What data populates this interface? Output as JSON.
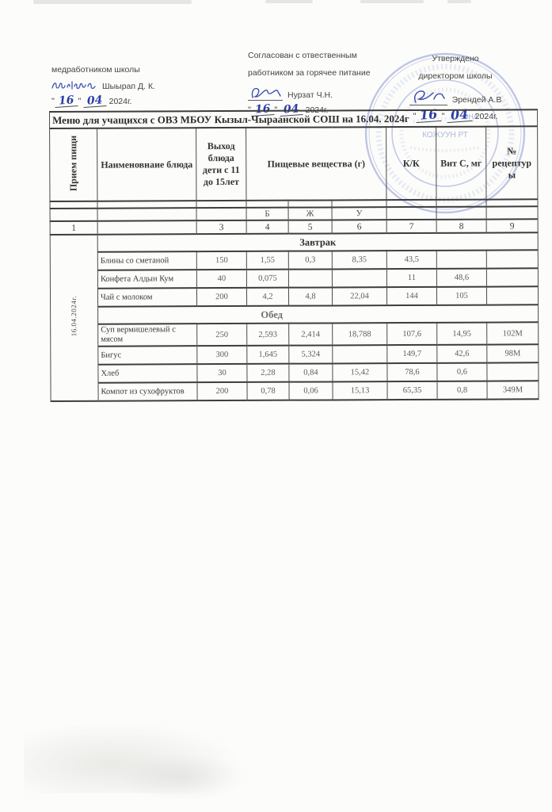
{
  "signoffs": {
    "med": {
      "line1": "медработником школы",
      "name": "Шыырап Д. К.",
      "q1": "\"",
      "day": "16",
      "q2": "\"",
      "month": "04",
      "year": "2024г."
    },
    "agreed": {
      "line1": "Согласован с отвественным",
      "line2": "работником за горячее питание",
      "name": "Нурзат Ч.Н.",
      "q1": "\"",
      "day": "16",
      "q2": "\"",
      "month": "04",
      "year": "2024г."
    },
    "approved": {
      "line1": "Утверждено",
      "line2": "директором школы",
      "name": "Эрендей А.В",
      "q1": "\"",
      "day": "16",
      "q2": "\"",
      "month": "04",
      "year": "2024г."
    }
  },
  "title": "Меню для учащихся с ОВЗ МБОУ Кызыл-Чыраанской СОШ на 16.04. 2024г",
  "table": {
    "headers": {
      "meal": "Прием пищи",
      "dish": "Наименовнаие блюда",
      "output": "Выход блюда дети с 11 до 15лет",
      "nutrients": "Пищевые вещества (г)",
      "kk": "К/К",
      "vitc": "Вит С, мг",
      "recipe": "№ рецептуры"
    },
    "sub": {
      "b": "Б",
      "zh": "Ж",
      "u": "У"
    },
    "numbers": [
      "1",
      "",
      "3",
      "4",
      "5",
      "6",
      "7",
      "8",
      "9"
    ],
    "date_cell": "16.04.2024г.",
    "sections": [
      {
        "label": "Завтрак",
        "rows": [
          [
            "Блины со сметаной",
            "150",
            "1,55",
            "0,3",
            "8,35",
            "43,5",
            "",
            ""
          ],
          [
            "Конфета Алдын Кум",
            "40",
            "0,075",
            "",
            "",
            "11",
            "48,6",
            ""
          ],
          [
            "Чай с молоком",
            "200",
            "4,2",
            "4,8",
            "22,04",
            "144",
            "105",
            ""
          ]
        ]
      },
      {
        "label": "Обед",
        "rows": [
          [
            "Суп вермишелевый с мясом",
            "250",
            "2,593",
            "2,414",
            "18,788",
            "107,6",
            "14,95",
            "102М"
          ],
          [
            "Бигус",
            "300",
            "1,645",
            "5,324",
            "",
            "149,7",
            "42,6",
            "98М"
          ],
          [
            "Хлеб",
            "30",
            "2,28",
            "0,84",
            "15,42",
            "78,6",
            "0,6",
            ""
          ],
          [
            "Компот из сухофруктов",
            "200",
            "0,78",
            "0,06",
            "15,13",
            "65,35",
            "0,8",
            "349М"
          ]
        ]
      }
    ]
  },
  "stamp": {
    "line1": "ОНА",
    "line2": "КОЖУУН РТ"
  }
}
